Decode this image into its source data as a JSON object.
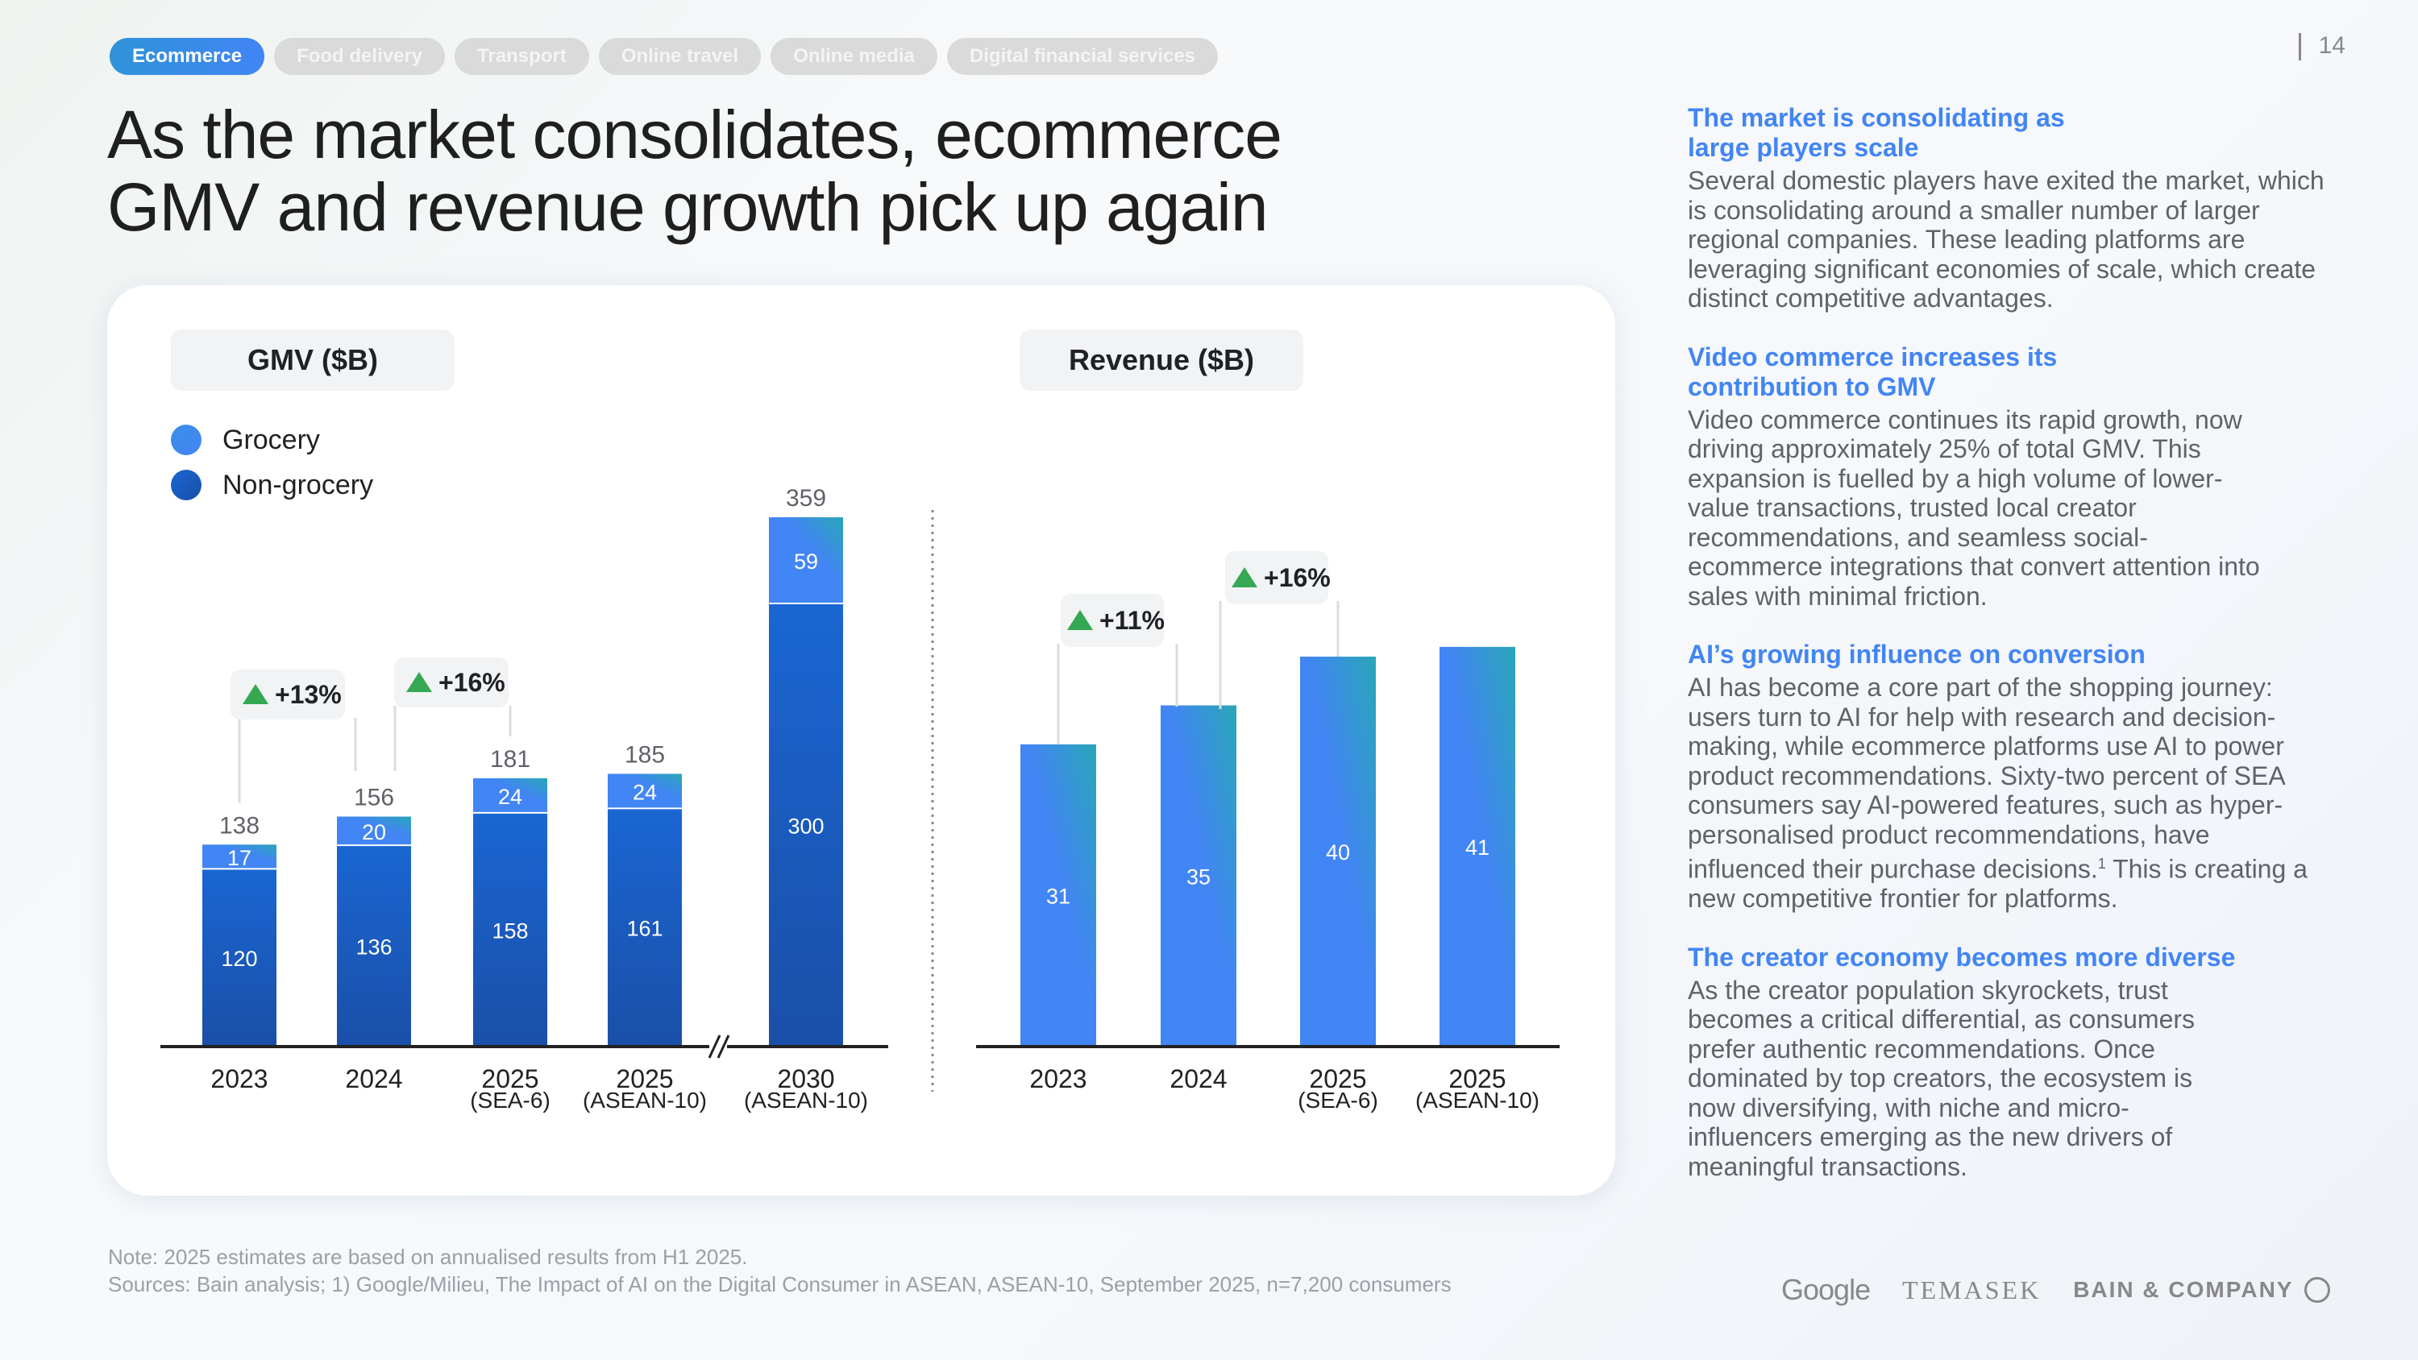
{
  "tabs": [
    {
      "label": "Ecommerce",
      "active": true
    },
    {
      "label": "Food delivery",
      "active": false
    },
    {
      "label": "Transport",
      "active": false
    },
    {
      "label": "Online travel",
      "active": false
    },
    {
      "label": "Online media",
      "active": false
    },
    {
      "label": "Digital financial services",
      "active": false
    }
  ],
  "page_number": "14",
  "title_line1": "As the market consolidates, ecommerce",
  "title_line2": "GMV and revenue growth pick up again",
  "colors": {
    "grocery": "#4285f4",
    "grocery_accent": "#2aa6b8",
    "non_grocery": "#1a5fc8",
    "non_grocery_dark": "#1a4fa8",
    "revenue": "#4285f4",
    "growth_up": "#34a853",
    "heading_blue": "#4285f4"
  },
  "chart_data": [
    {
      "type": "bar",
      "stacked": true,
      "title": "GMV ($B)",
      "categories": [
        {
          "label": "2023",
          "sub": ""
        },
        {
          "label": "2024",
          "sub": ""
        },
        {
          "label": "2025",
          "sub": "(SEA-6)"
        },
        {
          "label": "2025",
          "sub": "(ASEAN-10)"
        },
        {
          "label": "2030",
          "sub": "(ASEAN-10)"
        }
      ],
      "series": [
        {
          "name": "Non-grocery",
          "values": [
            120,
            136,
            158,
            161,
            300
          ]
        },
        {
          "name": "Grocery",
          "values": [
            17,
            20,
            24,
            24,
            59
          ]
        }
      ],
      "totals": [
        138,
        156,
        181,
        185,
        359
      ],
      "legend": [
        "Grocery",
        "Non-grocery"
      ],
      "legend_position": "top-left",
      "axis_break_before_index": 4,
      "growth_annotations": [
        {
          "from": 0,
          "to": 1,
          "label": "+13%"
        },
        {
          "from": 1,
          "to": 2,
          "label": "+16%"
        }
      ],
      "xlabel": "",
      "ylabel": "",
      "ylim": [
        0,
        370
      ],
      "grid": false
    },
    {
      "type": "bar",
      "title": "Revenue ($B)",
      "categories": [
        {
          "label": "2023",
          "sub": ""
        },
        {
          "label": "2024",
          "sub": ""
        },
        {
          "label": "2025",
          "sub": "(SEA-6)"
        },
        {
          "label": "2025",
          "sub": "(ASEAN-10)"
        }
      ],
      "values": [
        31,
        35,
        40,
        41
      ],
      "growth_annotations": [
        {
          "from": 0,
          "to": 1,
          "label": "+11%"
        },
        {
          "from": 1,
          "to": 2,
          "label": "+16%"
        }
      ],
      "xlabel": "",
      "ylabel": "",
      "ylim": [
        0,
        45
      ],
      "grid": false
    }
  ],
  "side": [
    {
      "heading": "The market is consolidating as large players scale",
      "body": "Several domestic players have exited the market, which is consolidating around a smaller number of larger regional companies. These leading platforms are leveraging significant economies of scale, which create distinct competitive advantages."
    },
    {
      "heading": "Video commerce increases its contribution to GMV",
      "body": "Video commerce continues its rapid growth, now driving approximately 25% of total GMV. This expansion is fuelled by a high volume of lower-value transactions, trusted local creator recommendations, and seamless social-ecommerce integrations that convert attention into sales with minimal friction."
    },
    {
      "heading": "AI’s growing influence on conversion",
      "body_before_sup": "AI has become a core part of the shopping journey: users turn to AI for help with research and decision-making, while ecommerce platforms use AI to power product recommendations. Sixty-two percent of SEA consumers say AI-powered features, such as hyper-personalised product recommendations, have influenced their purchase decisions.",
      "sup": "1",
      "body_after_sup": " This is creating a new competitive frontier for platforms."
    },
    {
      "heading": "The creator economy becomes more diverse",
      "body": "As the creator population skyrockets, trust becomes a critical differential, as consumers prefer authentic recommendations. Once dominated by top creators, the ecosystem is now diversifying, with niche and micro-influencers emerging as the new drivers of meaningful transactions."
    }
  ],
  "notes": {
    "note": "Note: 2025 estimates are based on annualised results from H1 2025.",
    "sources": "Sources: Bain analysis; 1) Google/Milieu, The Impact of AI on the Digital Consumer in ASEAN, ASEAN-10, September 2025, n=7,200 consumers"
  },
  "logos": {
    "google": "Google",
    "temasek": "TEMASEK",
    "bain": "BAIN & COMPANY"
  }
}
